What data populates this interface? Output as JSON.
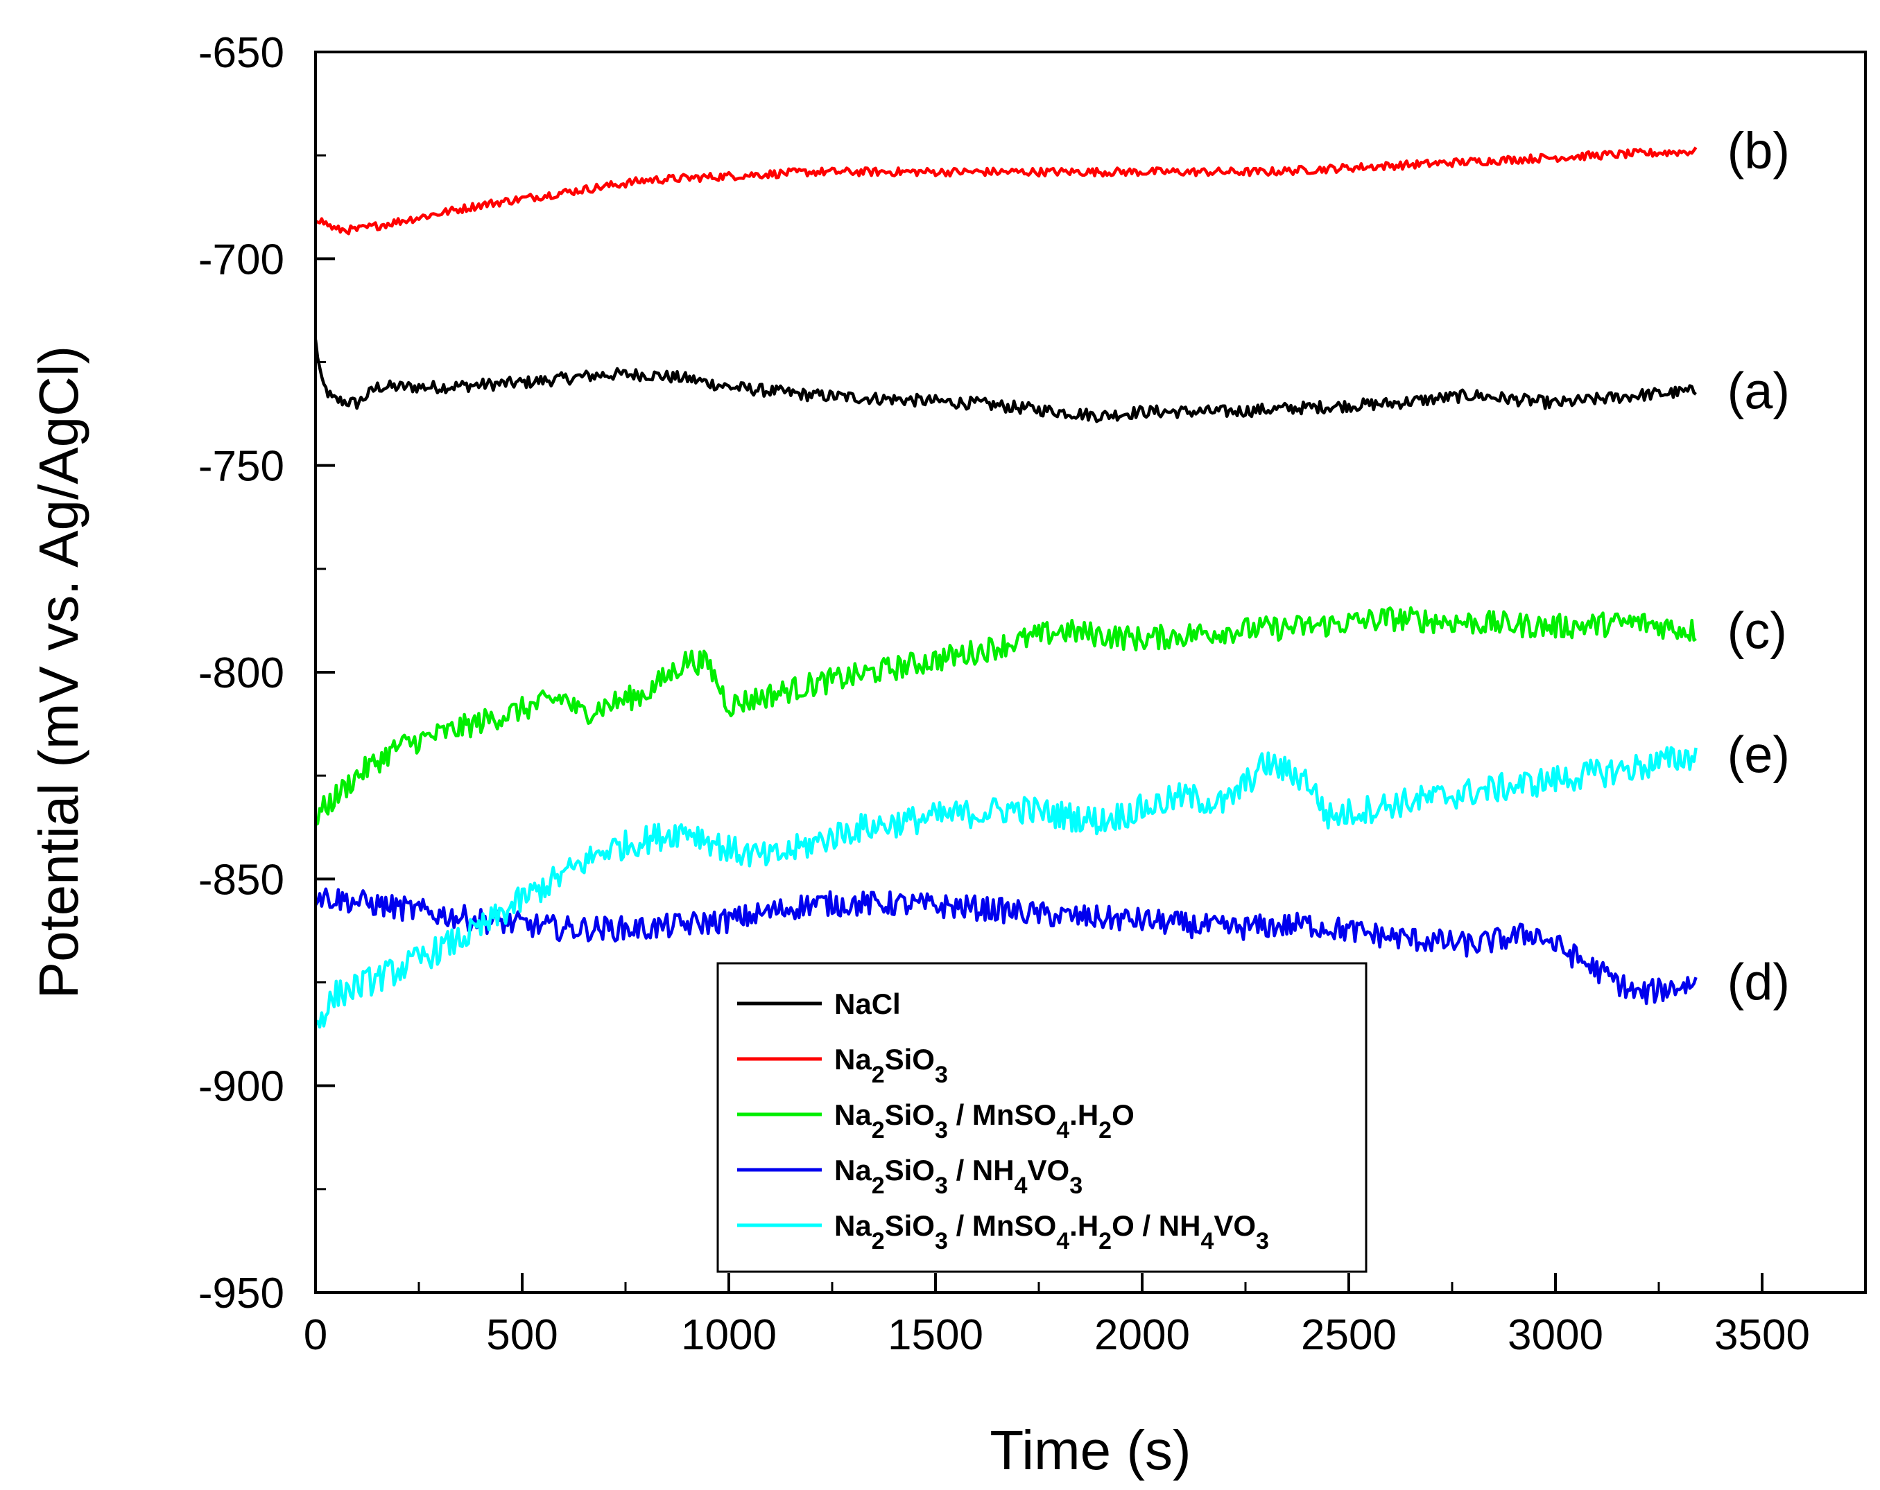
{
  "chart_data": {
    "type": "line",
    "xlabel": "Time (s)",
    "ylabel": "Potential (mV vs. Ag/AgCl)",
    "xlim": [
      0,
      3750
    ],
    "ylim": [
      -950,
      -650
    ],
    "xticks": [
      0,
      500,
      1000,
      1500,
      2000,
      2500,
      3000,
      3500
    ],
    "yticks": [
      -650,
      -700,
      -750,
      -800,
      -850,
      -900,
      -950
    ],
    "x_minor_step": 250,
    "y_minor_step": 25,
    "series": [
      {
        "name": "NaCl",
        "label": "(a)",
        "color": "#000000",
        "x": [
          0,
          15,
          40,
          100,
          150,
          300,
          500,
          700,
          800,
          900,
          1000,
          1200,
          1400,
          1600,
          1800,
          1900,
          2000,
          2200,
          2400,
          2600,
          2800,
          3000,
          3200,
          3340
        ],
        "y": [
          -720,
          -730,
          -734,
          -735,
          -731,
          -731,
          -730,
          -728,
          -728,
          -729,
          -731,
          -733,
          -734,
          -735,
          -737,
          -738,
          -737,
          -737,
          -736,
          -735,
          -733,
          -735,
          -733,
          -732
        ],
        "noise": 1.5
      },
      {
        "name": "Na2SiO3",
        "label": "(b)",
        "color": "#ff0000",
        "x": [
          0,
          50,
          100,
          200,
          400,
          600,
          800,
          1000,
          1200,
          1500,
          1700,
          1900,
          2100,
          2300,
          2500,
          2700,
          2900,
          3100,
          3340
        ],
        "y": [
          -690,
          -693,
          -693,
          -691,
          -687,
          -684,
          -681,
          -680,
          -679,
          -679,
          -679,
          -679,
          -679,
          -679,
          -678,
          -677,
          -676,
          -675,
          -674
        ],
        "noise": 1.0
      },
      {
        "name": "Na2SiO3 / MnSO4.H2O",
        "label": "(c)",
        "color": "#00ee00",
        "x": [
          0,
          100,
          200,
          400,
          600,
          640,
          800,
          900,
          950,
          1000,
          1200,
          1400,
          1600,
          1800,
          2000,
          2200,
          2400,
          2600,
          2800,
          3000,
          3200,
          3340
        ],
        "y": [
          -835,
          -825,
          -818,
          -812,
          -806,
          -810,
          -805,
          -797,
          -798,
          -808,
          -803,
          -799,
          -795,
          -790,
          -792,
          -790,
          -789,
          -787,
          -788,
          -789,
          -788,
          -790
        ],
        "noise": 3.0
      },
      {
        "name": "Na2SiO3 / NH4VO3",
        "label": "(d)",
        "color": "#0000ee",
        "x": [
          0,
          200,
          400,
          600,
          800,
          1000,
          1200,
          1400,
          1600,
          1800,
          2000,
          2200,
          2400,
          2600,
          2800,
          2950,
          3100,
          3200,
          3340
        ],
        "y": [
          -854,
          -857,
          -860,
          -862,
          -862,
          -860,
          -856,
          -856,
          -857,
          -859,
          -860,
          -862,
          -861,
          -864,
          -866,
          -863,
          -872,
          -878,
          -875
        ],
        "noise": 3.0
      },
      {
        "name": "Na2SiO3 / MnSO4.H2O / NH4VO3",
        "label": "(e)",
        "color": "#00ffff",
        "x": [
          0,
          50,
          200,
          400,
          500,
          700,
          900,
          1000,
          1100,
          1300,
          1500,
          1700,
          1900,
          2100,
          2200,
          2300,
          2400,
          2450,
          2600,
          2800,
          3000,
          3200,
          3340
        ],
        "y": [
          -885,
          -878,
          -872,
          -862,
          -855,
          -843,
          -838,
          -843,
          -845,
          -838,
          -835,
          -833,
          -836,
          -830,
          -832,
          -822,
          -826,
          -835,
          -832,
          -829,
          -826,
          -823,
          -820
        ],
        "noise": 3.5
      }
    ],
    "legend": {
      "position": "lower-center",
      "entries": [
        {
          "color": "#000000",
          "parts": [
            [
              "NaCl",
              ""
            ]
          ]
        },
        {
          "color": "#ff0000",
          "parts": [
            [
              "Na",
              ""
            ],
            [
              "2",
              "sub"
            ],
            [
              "SiO",
              ""
            ],
            [
              "3",
              "sub"
            ]
          ]
        },
        {
          "color": "#00ee00",
          "parts": [
            [
              "Na",
              ""
            ],
            [
              "2",
              "sub"
            ],
            [
              "SiO",
              ""
            ],
            [
              "3",
              "sub"
            ],
            [
              " / MnSO",
              ""
            ],
            [
              "4",
              "sub"
            ],
            [
              ".H",
              ""
            ],
            [
              "2",
              "sub"
            ],
            [
              "O",
              ""
            ]
          ]
        },
        {
          "color": "#0000ee",
          "parts": [
            [
              "Na",
              ""
            ],
            [
              "2",
              "sub"
            ],
            [
              "SiO",
              ""
            ],
            [
              "3",
              "sub"
            ],
            [
              " / NH",
              ""
            ],
            [
              "4",
              "sub"
            ],
            [
              "VO",
              ""
            ],
            [
              "3",
              "sub"
            ]
          ]
        },
        {
          "color": "#00ffff",
          "parts": [
            [
              "Na",
              ""
            ],
            [
              "2",
              "sub"
            ],
            [
              "SiO",
              ""
            ],
            [
              "3",
              "sub"
            ],
            [
              " / MnSO",
              ""
            ],
            [
              "4",
              "sub"
            ],
            [
              ".H",
              ""
            ],
            [
              "2",
              "sub"
            ],
            [
              "O / NH",
              ""
            ],
            [
              "4",
              "sub"
            ],
            [
              "VO",
              ""
            ],
            [
              "3",
              "sub"
            ]
          ]
        }
      ]
    }
  }
}
